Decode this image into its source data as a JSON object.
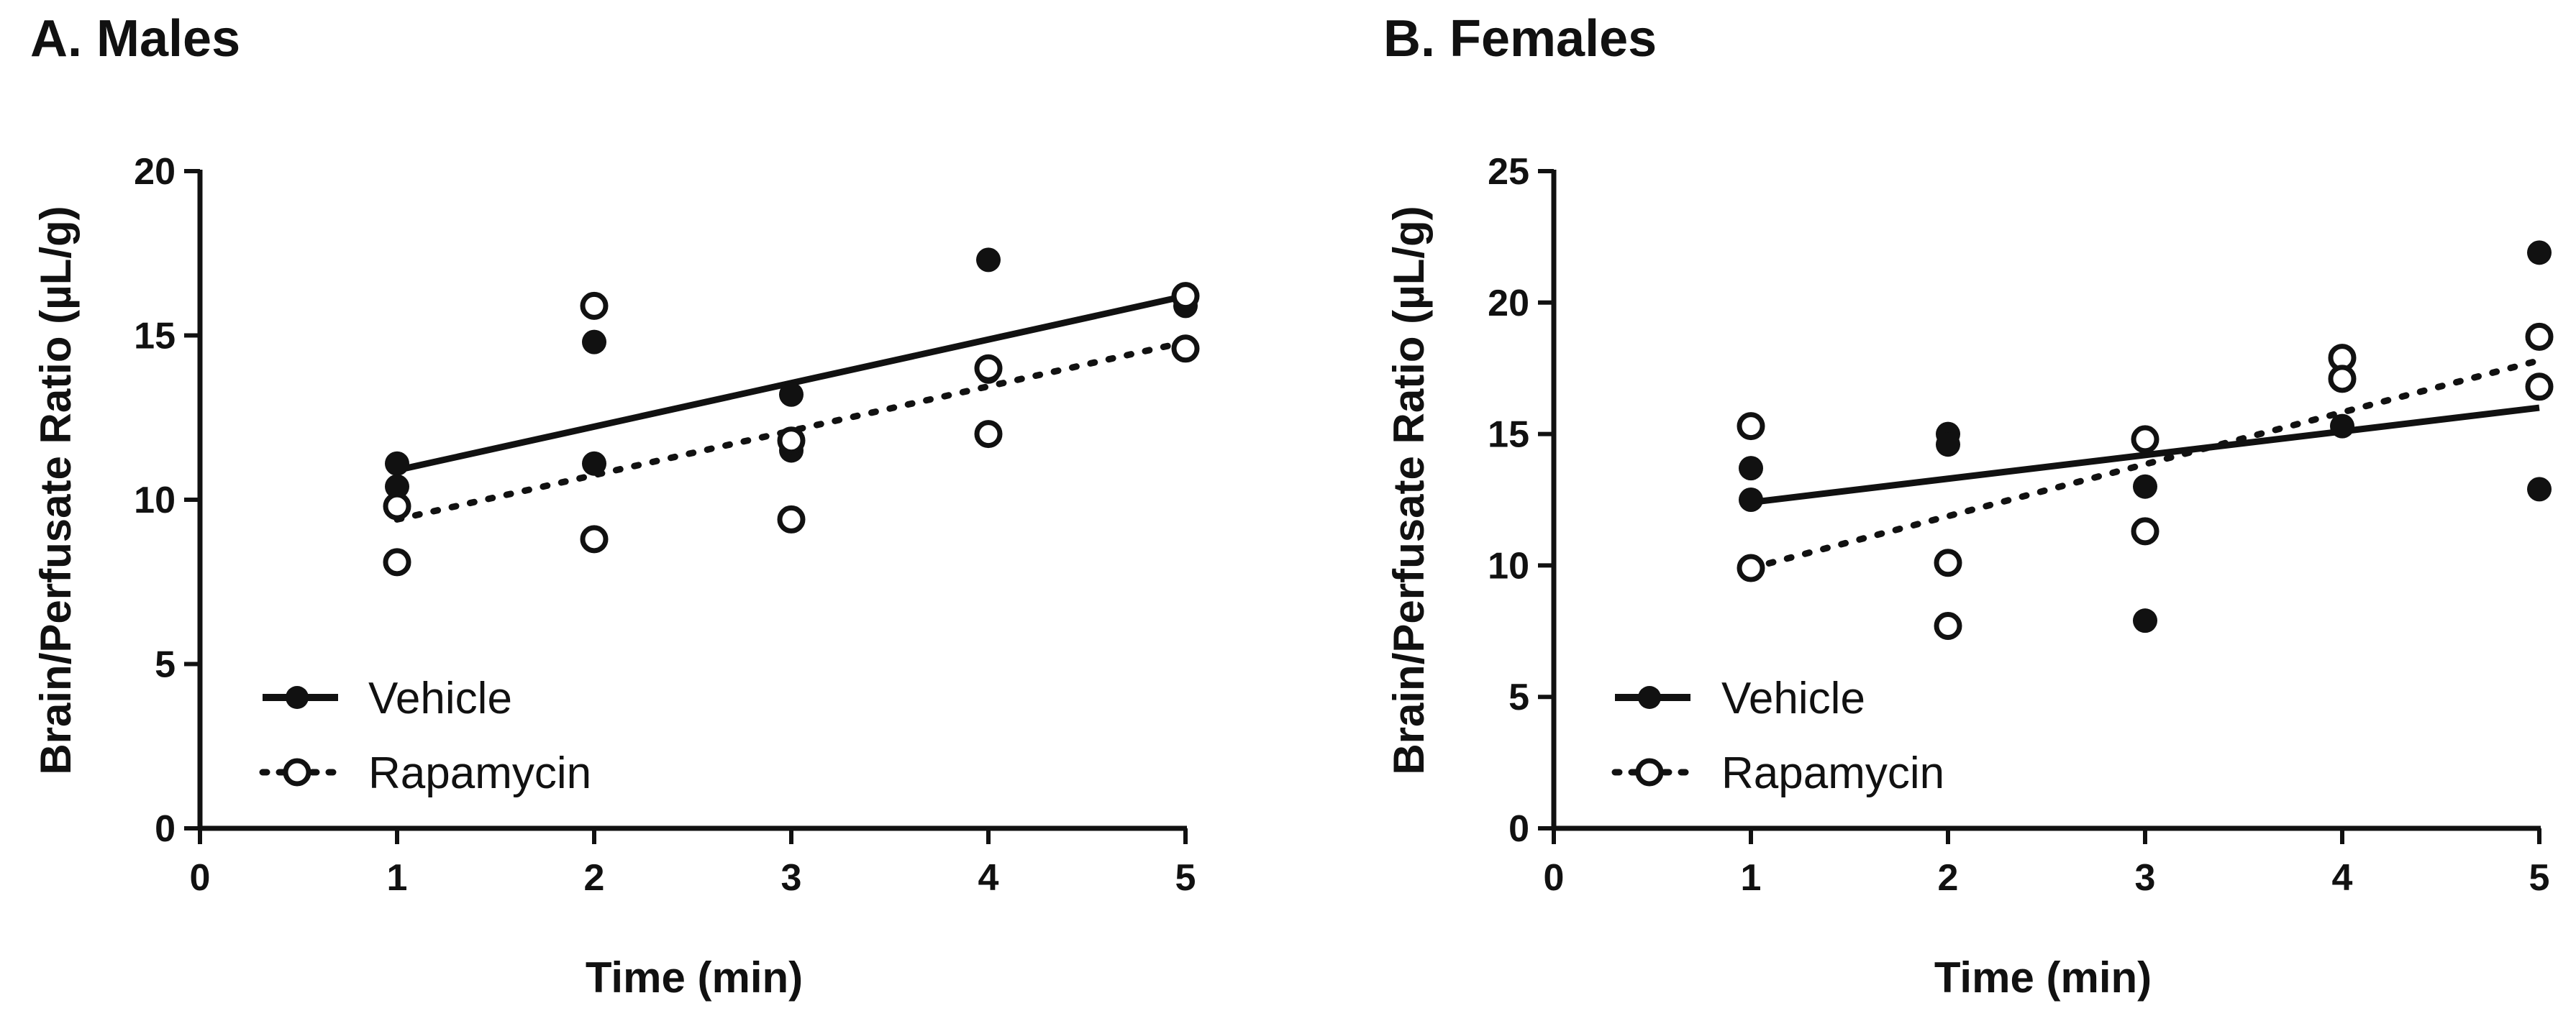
{
  "colors": {
    "ink": "#111111",
    "background": "#ffffff"
  },
  "chart_data": [
    {
      "type": "scatter",
      "panel_title": "A. Males",
      "xlabel": "Time (min)",
      "ylabel": "Brain/Perfusate Ratio (µL/g)",
      "xlim": [
        0,
        5
      ],
      "ylim": [
        0,
        20
      ],
      "xticks": [
        0,
        1,
        2,
        3,
        4,
        5
      ],
      "yticks": [
        0,
        5,
        10,
        15,
        20
      ],
      "legend": {
        "position": "bottom-left",
        "entries": [
          "Vehicle",
          "Rapamycin"
        ]
      },
      "series": [
        {
          "name": "Vehicle",
          "marker": "filled-circle",
          "line": "solid",
          "points": [
            [
              1,
              11.1
            ],
            [
              1,
              10.4
            ],
            [
              2,
              14.8
            ],
            [
              2,
              11.1
            ],
            [
              3,
              13.2
            ],
            [
              3,
              11.5
            ],
            [
              4,
              17.3
            ],
            [
              4,
              14.0
            ],
            [
              4,
              13.9
            ],
            [
              5,
              15.9
            ]
          ],
          "fit": {
            "x": [
              1,
              5
            ],
            "y": [
              10.9,
              16.2
            ]
          }
        },
        {
          "name": "Rapamycin",
          "marker": "open-circle",
          "line": "dotted",
          "points": [
            [
              1,
              9.8
            ],
            [
              1,
              8.1
            ],
            [
              2,
              15.9
            ],
            [
              2,
              8.8
            ],
            [
              3,
              11.8
            ],
            [
              3,
              9.4
            ],
            [
              4,
              14.0
            ],
            [
              4,
              12.0
            ],
            [
              5,
              16.2
            ],
            [
              5,
              14.6
            ]
          ],
          "fit": {
            "x": [
              1,
              5
            ],
            "y": [
              9.4,
              14.8
            ]
          }
        }
      ]
    },
    {
      "type": "scatter",
      "panel_title": "B. Females",
      "xlabel": "Time (min)",
      "ylabel": "Brain/Perfusate Ratio (µL/g)",
      "xlim": [
        0,
        5
      ],
      "ylim": [
        0,
        25
      ],
      "xticks": [
        0,
        1,
        2,
        3,
        4,
        5
      ],
      "yticks": [
        0,
        5,
        10,
        15,
        20,
        25
      ],
      "legend": {
        "position": "bottom-left",
        "entries": [
          "Vehicle",
          "Rapamycin"
        ]
      },
      "series": [
        {
          "name": "Vehicle",
          "marker": "filled-circle",
          "line": "solid",
          "points": [
            [
              1,
              13.7
            ],
            [
              1,
              12.5
            ],
            [
              2,
              15.0
            ],
            [
              2,
              14.6
            ],
            [
              3,
              13.0
            ],
            [
              3,
              7.9
            ],
            [
              4,
              15.3
            ],
            [
              5,
              21.9
            ],
            [
              5,
              12.9
            ]
          ],
          "fit": {
            "x": [
              1,
              5
            ],
            "y": [
              12.4,
              16.0
            ]
          }
        },
        {
          "name": "Rapamycin",
          "marker": "open-circle",
          "line": "dotted",
          "points": [
            [
              1,
              15.3
            ],
            [
              1,
              9.9
            ],
            [
              2,
              10.1
            ],
            [
              2,
              7.7
            ],
            [
              3,
              14.8
            ],
            [
              3,
              11.3
            ],
            [
              4,
              17.9
            ],
            [
              4,
              17.1
            ],
            [
              5,
              18.7
            ],
            [
              5,
              16.8
            ]
          ],
          "fit": {
            "x": [
              1,
              5
            ],
            "y": [
              9.9,
              17.8
            ]
          }
        }
      ]
    }
  ]
}
